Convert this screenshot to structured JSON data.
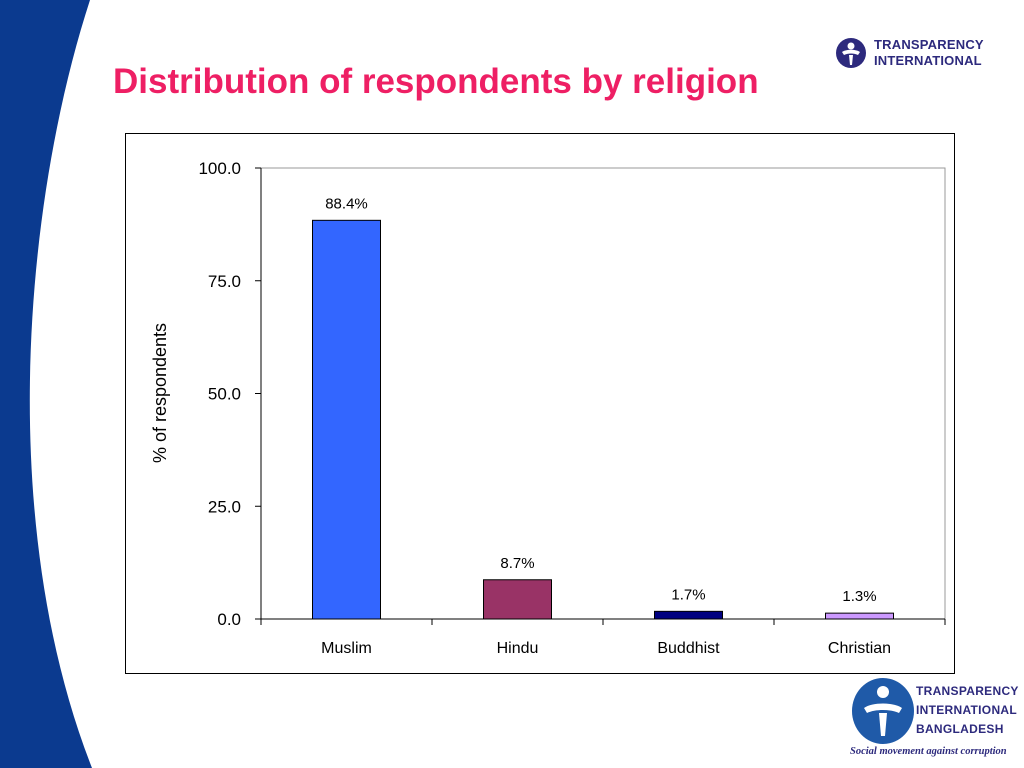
{
  "slide": {
    "title": "Distribution of respondents by religion"
  },
  "logos": {
    "top": {
      "line1": "TRANSPARENCY",
      "line2": "INTERNATIONAL"
    },
    "bottom": {
      "line1": "TRANSPARENCY",
      "line2": "INTERNATIONAL",
      "line3": "BANGLADESH",
      "tagline": "Social movement against corruption"
    }
  },
  "colors": {
    "title": "#ee1f64",
    "side_band": "#0b3a8f",
    "logo": "#2d2a7d"
  },
  "chart_data": {
    "type": "bar",
    "title": "",
    "xlabel": "",
    "ylabel": "% of respondents",
    "categories": [
      "Muslim",
      "Hindu",
      "Buddhist",
      "Christian"
    ],
    "values": [
      88.4,
      8.7,
      1.7,
      1.3
    ],
    "data_labels": [
      "88.4%",
      "8.7%",
      "1.7%",
      "1.3%"
    ],
    "bar_colors": [
      "#3366ff",
      "#993366",
      "#000080",
      "#cc99ff"
    ],
    "ylim": [
      0,
      100
    ],
    "yticks": [
      0,
      25,
      50,
      75,
      100
    ],
    "ytick_labels": [
      "0.0",
      "25.0",
      "50.0",
      "75.0",
      "100.0"
    ],
    "grid": false,
    "legend": "none"
  }
}
